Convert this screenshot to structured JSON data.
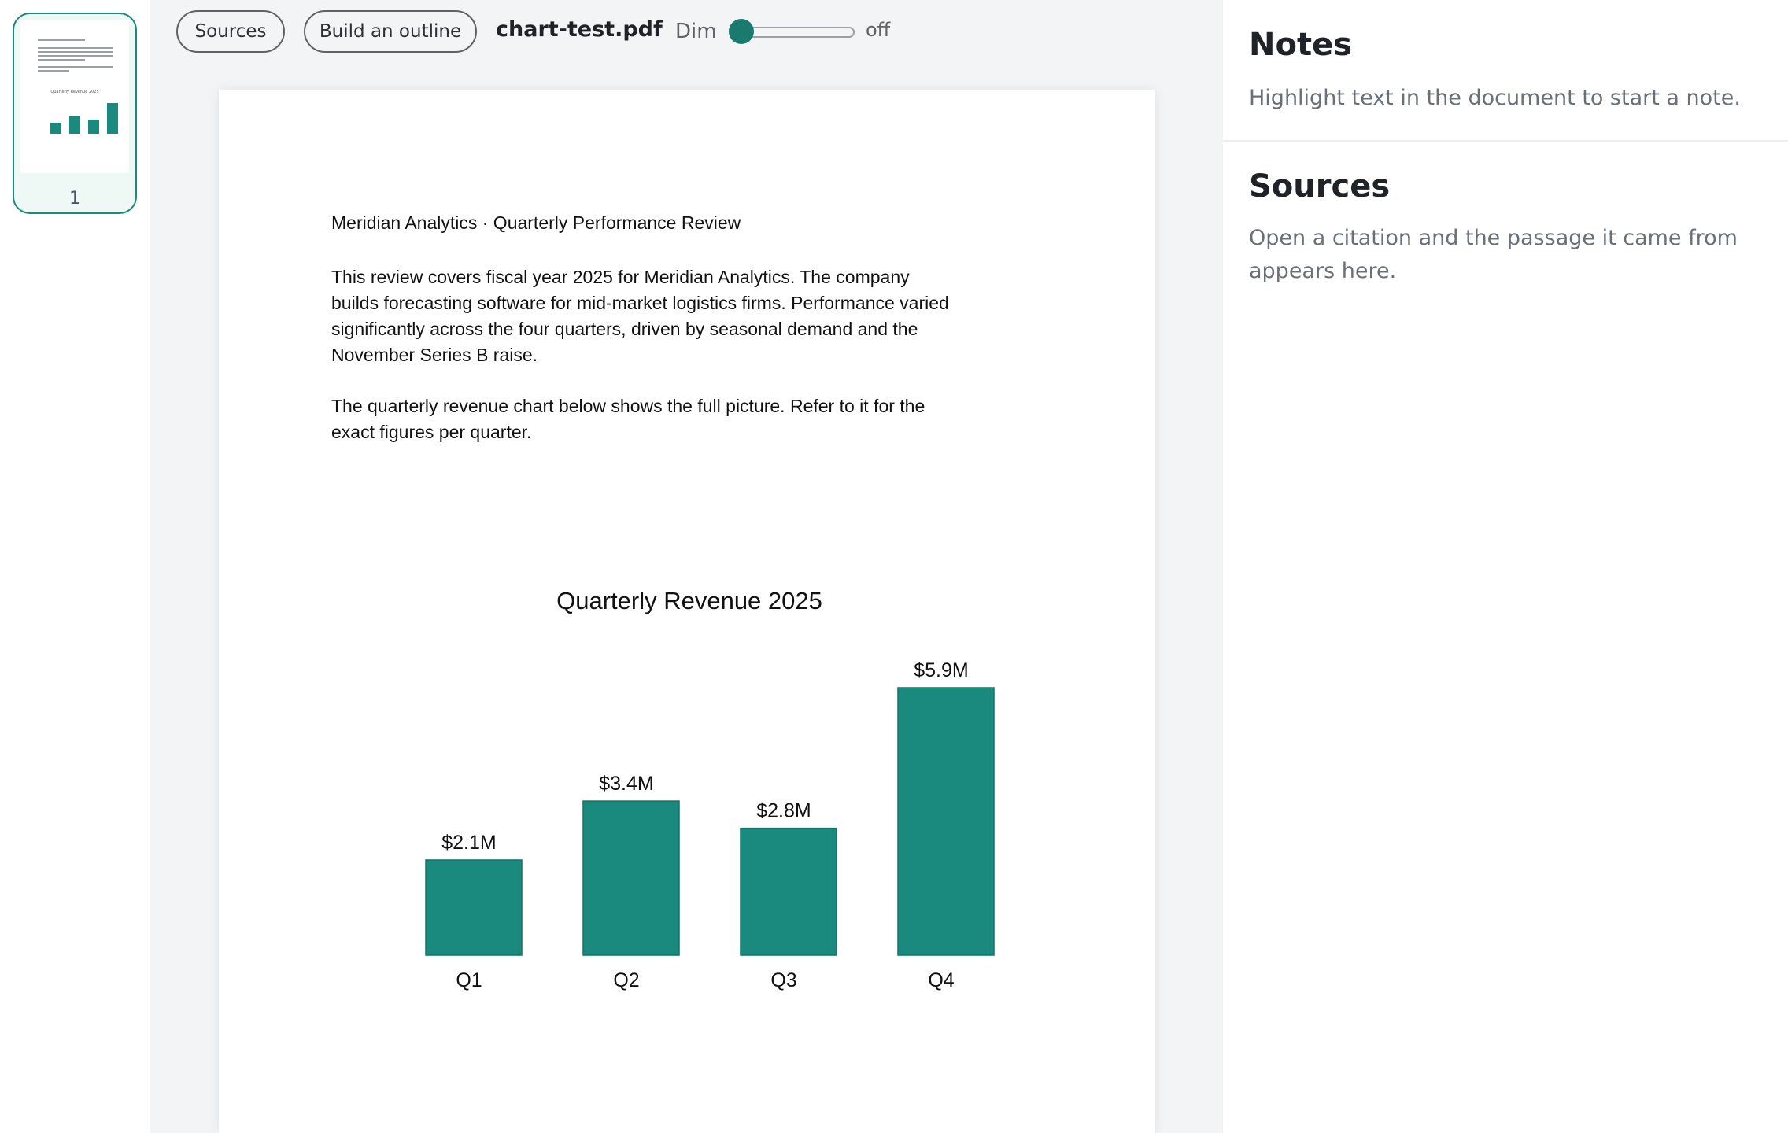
{
  "thumbnail": {
    "page_number": "1",
    "mini_title": "Quarterly Revenue 2025"
  },
  "toolbar": {
    "sources_label": "Sources",
    "outline_label": "Build an outline",
    "file_name": "chart-test.pdf",
    "dim_label": "Dim",
    "dim_state": "off",
    "dim_level": 0
  },
  "document": {
    "heading": "Meridian Analytics · Quarterly Performance Review",
    "paragraph1": "This review covers fiscal year 2025 for Meridian Analytics. The company builds forecasting software for mid-market logistics firms. Performance varied significantly across the four quarters, driven by seasonal demand and the November Series B raise.",
    "paragraph2": "The quarterly revenue chart below shows the full picture. Refer to it for the exact figures per quarter."
  },
  "chart_data": {
    "type": "bar",
    "title": "Quarterly Revenue 2025",
    "categories": [
      "Q1",
      "Q2",
      "Q3",
      "Q4"
    ],
    "values": [
      2.1,
      3.4,
      2.8,
      5.9
    ],
    "data_labels": [
      "$2.1M",
      "$3.4M",
      "$2.8M",
      "$5.9M"
    ],
    "xlabel": "",
    "ylabel": "",
    "ylim": [
      0,
      5.9
    ],
    "grid": false,
    "bar_color": "#1a8a7e"
  },
  "notes_panel": {
    "notes_title": "Notes",
    "notes_text": "Highlight text in the document to start a note.",
    "sources_title": "Sources",
    "sources_text": "Open a citation and the passage it came from appears here."
  },
  "colors": {
    "accent": "#1a8a7e",
    "thumb_bg": "#eef8f5"
  }
}
